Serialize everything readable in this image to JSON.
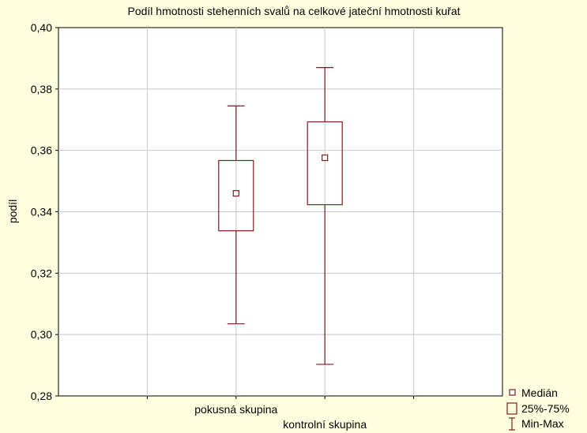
{
  "chart_data": {
    "type": "box",
    "title": "Podíl hmotnosti stehenních svalů na celkové jateční hmotnosti kuřat",
    "xlabel": "",
    "ylabel": "podíl",
    "ylim": [
      0.28,
      0.4
    ],
    "yticks": [
      0.28,
      0.3,
      0.32,
      0.34,
      0.36,
      0.38,
      0.4
    ],
    "ytick_labels": [
      "0,28",
      "0,30",
      "0,32",
      "0,34",
      "0,36",
      "0,38",
      "0,40"
    ],
    "categories": [
      "pokusná skupina",
      "kontrolní skupina"
    ],
    "groups": [
      {
        "label": "pokusná skupina",
        "min": 0.3035,
        "q1": 0.3338,
        "median": 0.346,
        "q3": 0.3567,
        "max": 0.3745
      },
      {
        "label": "kontrolní skupina",
        "min": 0.2903,
        "q1": 0.3423,
        "median": 0.3576,
        "q3": 0.3693,
        "max": 0.387
      }
    ],
    "grid": true,
    "legend_position": "bottom-right",
    "legend": [
      {
        "icon": "median-square-icon",
        "label": "Medián"
      },
      {
        "icon": "box-rect-icon",
        "label": "25%-75%"
      },
      {
        "icon": "whisker-icon",
        "label": "Min-Max"
      }
    ],
    "colors": {
      "mark": "#7b1e1e",
      "background": "#ffffe0",
      "plot": "#ffffff",
      "grid": "#c8c8c8"
    }
  }
}
